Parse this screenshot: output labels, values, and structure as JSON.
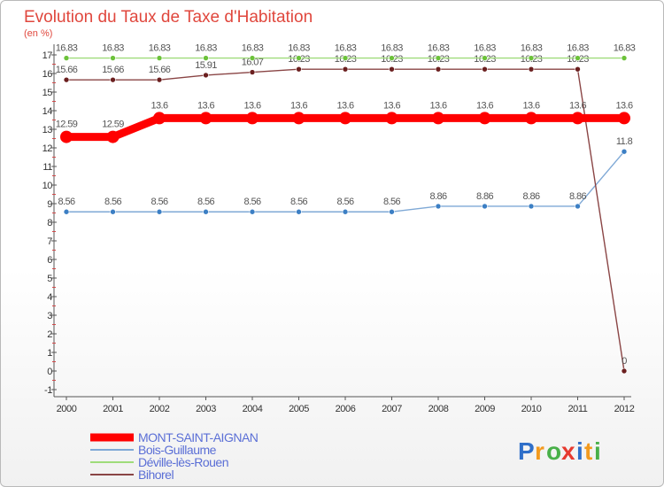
{
  "chart_data": {
    "type": "line",
    "title": "Evolution du Taux de Taxe d'Habitation",
    "ylabel": "(en %)",
    "xlabel": "",
    "x": [
      "2000",
      "2001",
      "2002",
      "2003",
      "2004",
      "2005",
      "2006",
      "2007",
      "2008",
      "2009",
      "2010",
      "2011",
      "2012"
    ],
    "ylim": [
      -1,
      17
    ],
    "yticks": [
      "-1",
      "0",
      "1",
      "2",
      "3",
      "4",
      "5",
      "6",
      "7",
      "8",
      "9",
      "10",
      "11",
      "12",
      "13",
      "14",
      "15",
      "16",
      "17"
    ],
    "grid": false,
    "legend_position": "bottom-left",
    "series": [
      {
        "name": "MONT-SAINT-AIGNAN",
        "color": "#ff0000",
        "marker_color": "#ff0000",
        "emphasis": "thick",
        "values": [
          12.59,
          12.59,
          13.6,
          13.6,
          13.6,
          13.6,
          13.6,
          13.6,
          13.6,
          13.6,
          13.6,
          13.6,
          13.6
        ],
        "labels": [
          "12.59",
          "12.59",
          "13.6",
          "13.6",
          "13.6",
          "13.6",
          "13.6",
          "13.6",
          "13.6",
          "13.6",
          "13.6",
          "13.6",
          "13.6"
        ]
      },
      {
        "name": "Bois-Guillaume",
        "color": "#7fa9d6",
        "marker_color": "#3c7fc4",
        "emphasis": "thin",
        "values": [
          8.56,
          8.56,
          8.56,
          8.56,
          8.56,
          8.56,
          8.56,
          8.56,
          8.86,
          8.86,
          8.86,
          8.86,
          11.8
        ],
        "labels": [
          "8.56",
          "8.56",
          "8.56",
          "8.56",
          "8.56",
          "8.56",
          "8.56",
          "8.56",
          "8.86",
          "8.86",
          "8.86",
          "8.86",
          "11.8"
        ]
      },
      {
        "name": "Déville-lès-Rouen",
        "color": "#9fdc7a",
        "marker_color": "#6cc23a",
        "emphasis": "thin",
        "values": [
          16.83,
          16.83,
          16.83,
          16.83,
          16.83,
          16.83,
          16.83,
          16.83,
          16.83,
          16.83,
          16.83,
          16.83,
          16.83
        ],
        "labels": [
          "16.83",
          "16.83",
          "16.83",
          "16.83",
          "16.83",
          "16.83",
          "16.83",
          "16.83",
          "16.83",
          "16.83",
          "16.83",
          "16.83",
          "16.83"
        ]
      },
      {
        "name": "Bihorel",
        "color": "#8a4545",
        "marker_color": "#6b1f1f",
        "emphasis": "thin",
        "values": [
          15.66,
          15.66,
          15.66,
          15.91,
          16.07,
          16.23,
          16.23,
          16.23,
          16.23,
          16.23,
          16.23,
          16.23,
          0
        ],
        "labels": [
          "15.66",
          "15.66",
          "15.66",
          "15.91",
          "16.07",
          "16.23",
          "16.23",
          "16.23",
          "16.23",
          "16.23",
          "16.23",
          "16.23",
          "0"
        ]
      }
    ]
  },
  "logo": {
    "text": "Proxiti",
    "letters": [
      "P",
      "r",
      "o",
      "x",
      "i",
      "t",
      "i"
    ]
  }
}
